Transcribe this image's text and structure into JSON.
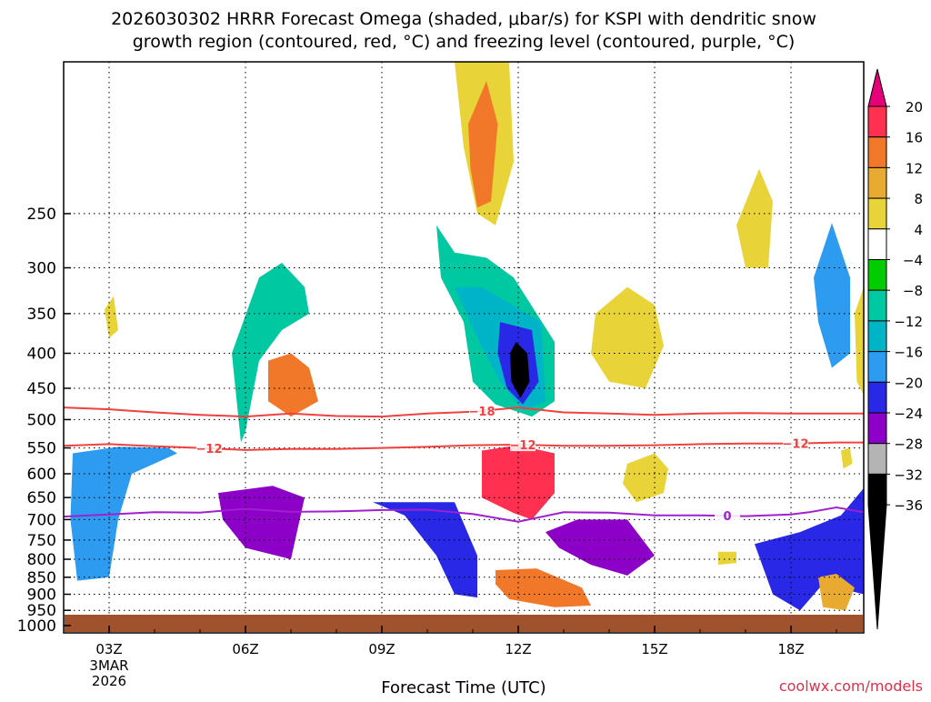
{
  "chart_data": {
    "type": "heatmap",
    "title_line1": "2026030302 HRRR Forecast Omega (shaded, μbar/s) for KSPI with dendritic snow",
    "title_line2": "growth region (contoured, red, °C) and freezing level (contoured, purple, °C)",
    "xlabel": "Forecast Time (UTC)",
    "credit": "coolwx.com/models",
    "x_unit": "forecast hour (0 = 02Z)",
    "xlim": [
      0,
      17.6
    ],
    "x_ticks": [
      {
        "hour": 1,
        "label": "03Z",
        "sub1": "3MAR",
        "sub2": "2026"
      },
      {
        "hour": 4,
        "label": "06Z"
      },
      {
        "hour": 7,
        "label": "09Z"
      },
      {
        "hour": 10,
        "label": "12Z"
      },
      {
        "hour": 13,
        "label": "15Z"
      },
      {
        "hour": 16,
        "label": "18Z"
      }
    ],
    "ylim_hPa": [
      1025,
      150
    ],
    "y_ticks": [
      250,
      300,
      350,
      400,
      450,
      500,
      550,
      600,
      650,
      700,
      750,
      800,
      850,
      900,
      950,
      1000
    ],
    "colorbar": {
      "labels": [
        "20",
        "16",
        "12",
        "8",
        "4",
        "−4",
        "−8",
        "−12",
        "−16",
        "−20",
        "−24",
        "−28",
        "−32",
        "−36"
      ],
      "colors": [
        "#ff3050",
        "#f07828",
        "#e8aa30",
        "#e8d438",
        "#ffffff",
        "#00cc00",
        "#00c8a0",
        "#00b4c8",
        "#2d9bf0",
        "#2828e6",
        "#8c00c8",
        "#b4b4b4",
        "#000000"
      ],
      "top_arrow": "#e60078",
      "bottom_arrow": "#000000"
    },
    "contours": [
      {
        "name": "dendritic-top",
        "value": -18,
        "label": "−18",
        "color": "#f04040",
        "points": [
          [
            0,
            480
          ],
          [
            1,
            483
          ],
          [
            2,
            488
          ],
          [
            3,
            492
          ],
          [
            4,
            495
          ],
          [
            5,
            490
          ],
          [
            6,
            494
          ],
          [
            7,
            495
          ],
          [
            8,
            490
          ],
          [
            9,
            487
          ],
          [
            10,
            480
          ],
          [
            11,
            488
          ],
          [
            12,
            490
          ],
          [
            13,
            492
          ],
          [
            14,
            490
          ],
          [
            15,
            489
          ],
          [
            16,
            490
          ],
          [
            17,
            490
          ],
          [
            17.6,
            490
          ]
        ]
      },
      {
        "name": "dendritic-bottom",
        "value": -12,
        "label": "−12",
        "color": "#f04040",
        "points": [
          [
            0,
            546
          ],
          [
            1,
            543
          ],
          [
            2,
            547
          ],
          [
            3,
            550
          ],
          [
            4,
            554
          ],
          [
            5,
            552
          ],
          [
            6,
            552
          ],
          [
            7,
            550
          ],
          [
            8,
            548
          ],
          [
            9,
            545
          ],
          [
            10,
            544
          ],
          [
            11,
            546
          ],
          [
            12,
            546
          ],
          [
            13,
            545
          ],
          [
            14,
            543
          ],
          [
            15,
            542
          ],
          [
            16,
            542
          ],
          [
            17,
            540
          ],
          [
            17.6,
            540
          ]
        ]
      },
      {
        "name": "freezing-level",
        "value": 0,
        "label": "0",
        "color": "#a020d0",
        "points": [
          [
            0,
            693
          ],
          [
            1,
            688
          ],
          [
            2,
            683
          ],
          [
            3,
            684
          ],
          [
            4,
            675
          ],
          [
            5,
            682
          ],
          [
            6,
            681
          ],
          [
            7,
            678
          ],
          [
            8,
            677
          ],
          [
            9,
            687
          ],
          [
            10,
            705
          ],
          [
            11,
            683
          ],
          [
            12,
            684
          ],
          [
            13,
            690
          ],
          [
            14,
            690
          ],
          [
            15,
            692
          ],
          [
            16,
            688
          ],
          [
            16.4,
            683
          ],
          [
            17,
            672
          ],
          [
            17.6,
            683
          ]
        ]
      }
    ],
    "omega_areas": [
      {
        "name": "upper-sink-outer",
        "value": 4,
        "polygon": [
          [
            8.6,
            150
          ],
          [
            9.8,
            150
          ],
          [
            9.9,
            210
          ],
          [
            9.5,
            260
          ],
          [
            9.1,
            250
          ],
          [
            8.8,
            200
          ]
        ]
      },
      {
        "name": "upper-sink-core",
        "value": 12,
        "polygon": [
          [
            8.9,
            185
          ],
          [
            9.3,
            160
          ],
          [
            9.55,
            185
          ],
          [
            9.4,
            240
          ],
          [
            9.1,
            245
          ],
          [
            8.95,
            215
          ]
        ]
      },
      {
        "name": "upper-lift",
        "value": -8,
        "polygon": [
          [
            8.2,
            260
          ],
          [
            8.6,
            285
          ],
          [
            9.3,
            290
          ],
          [
            9.9,
            310
          ],
          [
            10.8,
            385
          ],
          [
            10.8,
            470
          ],
          [
            10.3,
            495
          ],
          [
            9.5,
            475
          ],
          [
            9.0,
            440
          ],
          [
            8.8,
            360
          ],
          [
            8.3,
            310
          ]
        ]
      },
      {
        "name": "upper-lift-mid",
        "value": -12,
        "polygon": [
          [
            8.6,
            320
          ],
          [
            9.2,
            320
          ],
          [
            10.5,
            360
          ],
          [
            10.6,
            470
          ],
          [
            10.1,
            485
          ],
          [
            9.6,
            440
          ],
          [
            9.1,
            380
          ]
        ]
      },
      {
        "name": "upper-lift-core",
        "value": -20,
        "polygon": [
          [
            9.6,
            360
          ],
          [
            10.3,
            370
          ],
          [
            10.45,
            440
          ],
          [
            10.1,
            475
          ],
          [
            9.75,
            450
          ],
          [
            9.55,
            400
          ]
        ]
      },
      {
        "name": "upper-lift-max",
        "value": -32,
        "polygon": [
          [
            9.95,
            385
          ],
          [
            10.2,
            400
          ],
          [
            10.25,
            440
          ],
          [
            10.05,
            465
          ],
          [
            9.85,
            440
          ],
          [
            9.82,
            400
          ]
        ]
      },
      {
        "name": "mid-sink",
        "value": 16,
        "polygon": [
          [
            9.2,
            555
          ],
          [
            10.0,
            545
          ],
          [
            10.8,
            560
          ],
          [
            10.8,
            640
          ],
          [
            10.3,
            700
          ],
          [
            9.9,
            685
          ],
          [
            9.2,
            650
          ]
        ]
      },
      {
        "name": "mid-sink-core",
        "value": 20,
        "polygon": [
          [
            9.6,
            585
          ],
          [
            10.4,
            585
          ],
          [
            10.5,
            640
          ],
          [
            10.2,
            680
          ],
          [
            9.8,
            660
          ],
          [
            9.5,
            620
          ]
        ]
      },
      {
        "name": "low-lift",
        "value": -24,
        "polygon": [
          [
            10.6,
            730
          ],
          [
            11.3,
            700
          ],
          [
            12.4,
            700
          ],
          [
            13.0,
            790
          ],
          [
            12.4,
            845
          ],
          [
            11.6,
            815
          ],
          [
            10.9,
            770
          ]
        ]
      },
      {
        "name": "low-sink",
        "value": 12,
        "polygon": [
          [
            9.5,
            830
          ],
          [
            10.4,
            825
          ],
          [
            11.4,
            880
          ],
          [
            11.6,
            935
          ],
          [
            10.8,
            940
          ],
          [
            9.8,
            915
          ],
          [
            9.5,
            870
          ]
        ]
      },
      {
        "name": "left-lift-a",
        "value": -16,
        "polygon": [
          [
            0.2,
            560
          ],
          [
            1.2,
            548
          ],
          [
            2.3,
            550
          ],
          [
            2.5,
            560
          ],
          [
            1.5,
            600
          ],
          [
            1.2,
            700
          ],
          [
            1.0,
            850
          ],
          [
            0.3,
            860
          ],
          [
            0.15,
            700
          ]
        ]
      },
      {
        "name": "left-lift-b",
        "value": -24,
        "polygon": [
          [
            3.4,
            640
          ],
          [
            4.6,
            625
          ],
          [
            5.3,
            650
          ],
          [
            5.0,
            800
          ],
          [
            4.0,
            770
          ],
          [
            3.5,
            700
          ]
        ]
      },
      {
        "name": "sink-a",
        "value": 12,
        "polygon": [
          [
            4.5,
            410
          ],
          [
            5.0,
            400
          ],
          [
            5.4,
            420
          ],
          [
            5.6,
            470
          ],
          [
            5.0,
            495
          ],
          [
            4.5,
            470
          ]
        ]
      },
      {
        "name": "lift-b",
        "value": -8,
        "polygon": [
          [
            3.7,
            400
          ],
          [
            4.3,
            310
          ],
          [
            4.8,
            295
          ],
          [
            5.3,
            320
          ],
          [
            5.4,
            350
          ],
          [
            4.8,
            370
          ],
          [
            4.3,
            410
          ],
          [
            4.0,
            520
          ],
          [
            3.9,
            540
          ]
        ]
      },
      {
        "name": "lift-c",
        "value": -20,
        "polygon": [
          [
            6.8,
            660
          ],
          [
            8.6,
            660
          ],
          [
            9.1,
            790
          ],
          [
            9.1,
            910
          ],
          [
            8.6,
            900
          ],
          [
            8.2,
            790
          ],
          [
            7.5,
            690
          ]
        ]
      },
      {
        "name": "right-lift",
        "value": -20,
        "polygon": [
          [
            15.2,
            760
          ],
          [
            16.2,
            730
          ],
          [
            17.1,
            690
          ],
          [
            17.6,
            630
          ],
          [
            17.6,
            900
          ],
          [
            16.7,
            870
          ],
          [
            16.2,
            950
          ],
          [
            15.6,
            900
          ]
        ]
      },
      {
        "name": "right-sink",
        "value": 8,
        "polygon": [
          [
            16.6,
            850
          ],
          [
            17.0,
            840
          ],
          [
            17.4,
            880
          ],
          [
            17.2,
            950
          ],
          [
            16.7,
            940
          ]
        ]
      },
      {
        "name": "upper-right-lift",
        "value": -16,
        "polygon": [
          [
            16.5,
            310
          ],
          [
            16.9,
            258
          ],
          [
            17.3,
            310
          ],
          [
            17.3,
            400
          ],
          [
            16.9,
            420
          ],
          [
            16.6,
            360
          ]
        ]
      },
      {
        "name": "upper-right-sink",
        "value": 4,
        "polygon": [
          [
            14.8,
            260
          ],
          [
            15.3,
            215
          ],
          [
            15.6,
            240
          ],
          [
            15.5,
            300
          ],
          [
            15.0,
            300
          ]
        ]
      },
      {
        "name": "mid-right-sink",
        "value": 4,
        "polygon": [
          [
            11.7,
            350
          ],
          [
            12.4,
            320
          ],
          [
            13.0,
            340
          ],
          [
            13.2,
            390
          ],
          [
            12.8,
            450
          ],
          [
            12.0,
            440
          ],
          [
            11.6,
            400
          ]
        ]
      },
      {
        "name": "lower-right-sink",
        "value": 4,
        "polygon": [
          [
            12.4,
            580
          ],
          [
            13.0,
            560
          ],
          [
            13.3,
            590
          ],
          [
            13.2,
            640
          ],
          [
            12.6,
            660
          ],
          [
            12.3,
            620
          ]
        ]
      },
      {
        "name": "far-right-sink",
        "value": 4,
        "polygon": [
          [
            17.4,
            350
          ],
          [
            17.6,
            320
          ],
          [
            17.6,
            460
          ],
          [
            17.45,
            440
          ]
        ]
      },
      {
        "name": "small-sink",
        "value": 4,
        "polygon": [
          [
            0.9,
            345
          ],
          [
            1.1,
            330
          ],
          [
            1.2,
            370
          ],
          [
            1.0,
            380
          ]
        ]
      },
      {
        "name": "small-sink-2",
        "value": 4,
        "polygon": [
          [
            14.4,
            780
          ],
          [
            14.8,
            780
          ],
          [
            14.8,
            810
          ],
          [
            14.4,
            815
          ]
        ]
      },
      {
        "name": "small-sink-3",
        "value": 4,
        "polygon": [
          [
            17.1,
            555
          ],
          [
            17.3,
            550
          ],
          [
            17.35,
            580
          ],
          [
            17.15,
            590
          ]
        ]
      }
    ]
  }
}
